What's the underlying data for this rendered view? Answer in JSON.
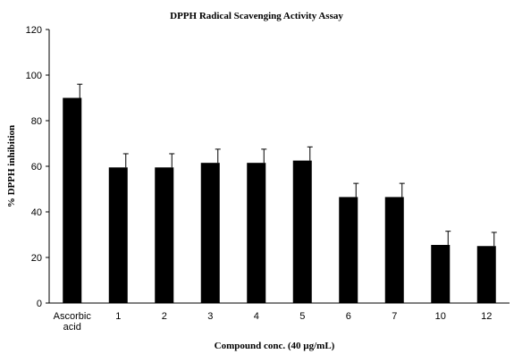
{
  "chart_data": {
    "type": "bar",
    "title": "DPPH Radical Scavenging Activity Assay",
    "xlabel": "Compound conc. (40 µg/mL)",
    "ylabel": "% DPPH inhibition",
    "ylim": [
      0,
      120
    ],
    "yticks": [
      0,
      20,
      40,
      60,
      80,
      100,
      120
    ],
    "grid": false,
    "categories": [
      [
        "Ascorbic",
        "acid"
      ],
      [
        "1"
      ],
      [
        "2"
      ],
      [
        "3"
      ],
      [
        "4"
      ],
      [
        "5"
      ],
      [
        "6"
      ],
      [
        "7"
      ],
      [
        "10"
      ],
      [
        "12"
      ]
    ],
    "values": [
      90,
      59.5,
      59.5,
      61.5,
      61.5,
      62.5,
      46.5,
      46.5,
      25.5,
      25
    ],
    "errors": [
      6,
      6,
      6,
      6,
      6,
      6,
      6,
      6,
      6,
      6
    ],
    "bar_color": "#000000"
  }
}
